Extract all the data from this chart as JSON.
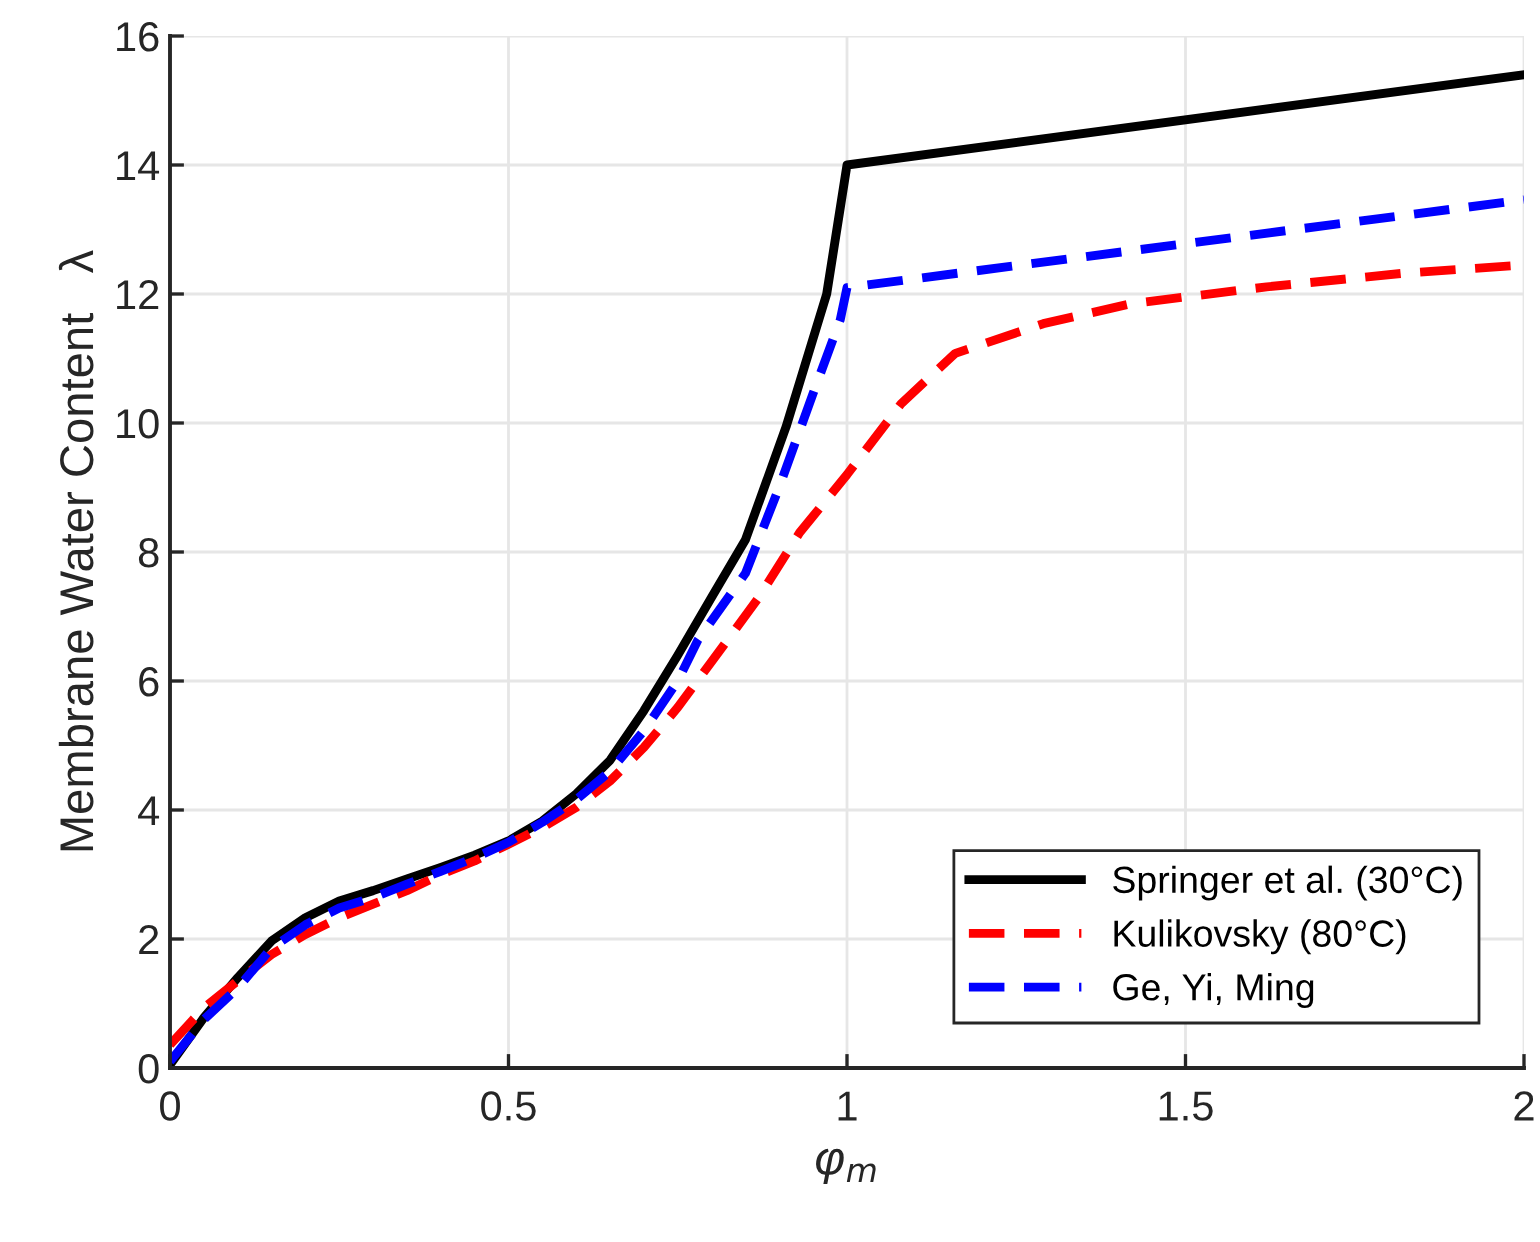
{
  "chart_data": {
    "type": "line",
    "xlabel": "φ$_{m}$",
    "ylabel": "Membrane Water Content   λ",
    "xlim": [
      0,
      2
    ],
    "ylim": [
      0,
      16
    ],
    "xticks": [
      0,
      0.5,
      1,
      1.5,
      2
    ],
    "yticks": [
      0,
      2,
      4,
      6,
      8,
      10,
      12,
      14,
      16
    ],
    "grid": true,
    "legend": "bottom right",
    "series": [
      {
        "name": "Springer et al. (30°C)",
        "color": "#000000",
        "line_style": "solid",
        "x": [
          0,
          0.05,
          0.1,
          0.15,
          0.2,
          0.25,
          0.3,
          0.35,
          0.4,
          0.45,
          0.5,
          0.55,
          0.6,
          0.65,
          0.7,
          0.75,
          0.8,
          0.85,
          0.91,
          0.97,
          1,
          2
        ],
        "values": [
          0.05,
          0.78,
          1.4,
          1.97,
          2.33,
          2.59,
          2.75,
          2.93,
          3.11,
          3.3,
          3.52,
          3.83,
          4.25,
          4.77,
          5.54,
          6.4,
          7.3,
          8.19,
          9.94,
          12.0,
          14.0,
          15.4
        ]
      },
      {
        "name": "Kulikovsky (80°C)",
        "color": "#ff0000",
        "line_style": "dashed",
        "x": [
          0,
          0.05,
          0.1,
          0.15,
          0.2,
          0.25,
          0.3,
          0.35,
          0.4,
          0.45,
          0.5,
          0.55,
          0.6,
          0.65,
          0.7,
          0.75,
          0.8,
          0.87,
          0.93,
          1,
          1.08,
          1.16,
          1.29,
          1.42,
          1.62,
          1.82,
          2
        ],
        "values": [
          0.36,
          0.93,
          1.35,
          1.76,
          2.07,
          2.33,
          2.54,
          2.75,
          3.0,
          3.21,
          3.47,
          3.73,
          4.04,
          4.45,
          4.97,
          5.59,
          6.3,
          7.3,
          8.3,
          9.2,
          10.3,
          11.08,
          11.54,
          11.85,
          12.11,
          12.32,
          12.45
        ]
      },
      {
        "name": "Ge, Yi, Ming",
        "color": "#0000ff",
        "line_style": "dashed",
        "x": [
          0,
          0.05,
          0.1,
          0.15,
          0.2,
          0.25,
          0.3,
          0.35,
          0.4,
          0.45,
          0.5,
          0.55,
          0.6,
          0.65,
          0.7,
          0.75,
          0.78,
          0.85,
          0.9,
          0.95,
          0.99,
          1,
          2
        ],
        "values": [
          0.1,
          0.75,
          1.24,
          1.86,
          2.22,
          2.48,
          2.64,
          2.85,
          3.05,
          3.26,
          3.5,
          3.81,
          4.16,
          4.6,
          5.23,
          6.0,
          6.64,
          7.67,
          9.01,
          10.46,
          11.6,
          12.1,
          13.46
        ]
      }
    ]
  }
}
